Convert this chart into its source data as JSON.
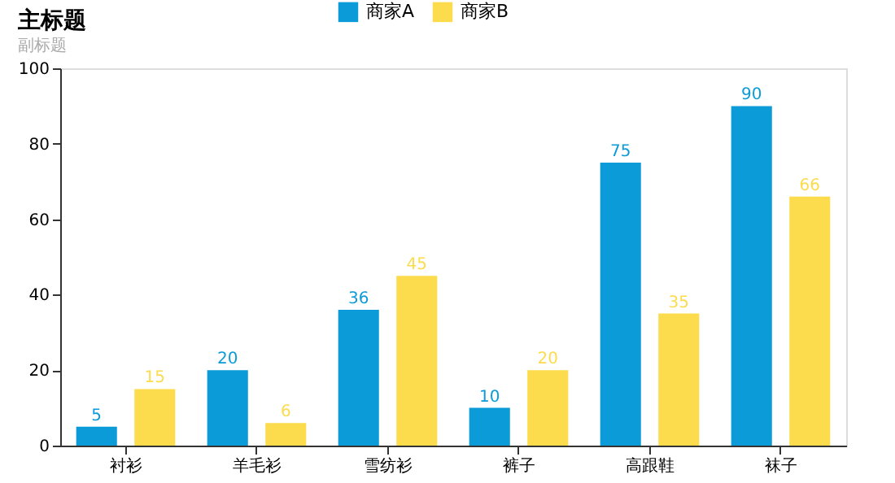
{
  "chart_data": {
    "type": "bar",
    "title": "主标题",
    "subtitle": "副标题",
    "categories": [
      "衬衫",
      "羊毛衫",
      "雪纺衫",
      "裤子",
      "高跟鞋",
      "袜子"
    ],
    "series": [
      {
        "name": "商家A",
        "color": "#0a9bd8",
        "values": [
          5,
          20,
          36,
          10,
          75,
          90
        ]
      },
      {
        "name": "商家B",
        "color": "#fcdb4d",
        "values": [
          15,
          6,
          45,
          20,
          35,
          66
        ]
      }
    ],
    "ylim": [
      0,
      100
    ],
    "yticks": [
      0,
      20,
      40,
      60,
      80,
      100
    ],
    "grid": false,
    "legend": "top",
    "data_labels": true
  }
}
